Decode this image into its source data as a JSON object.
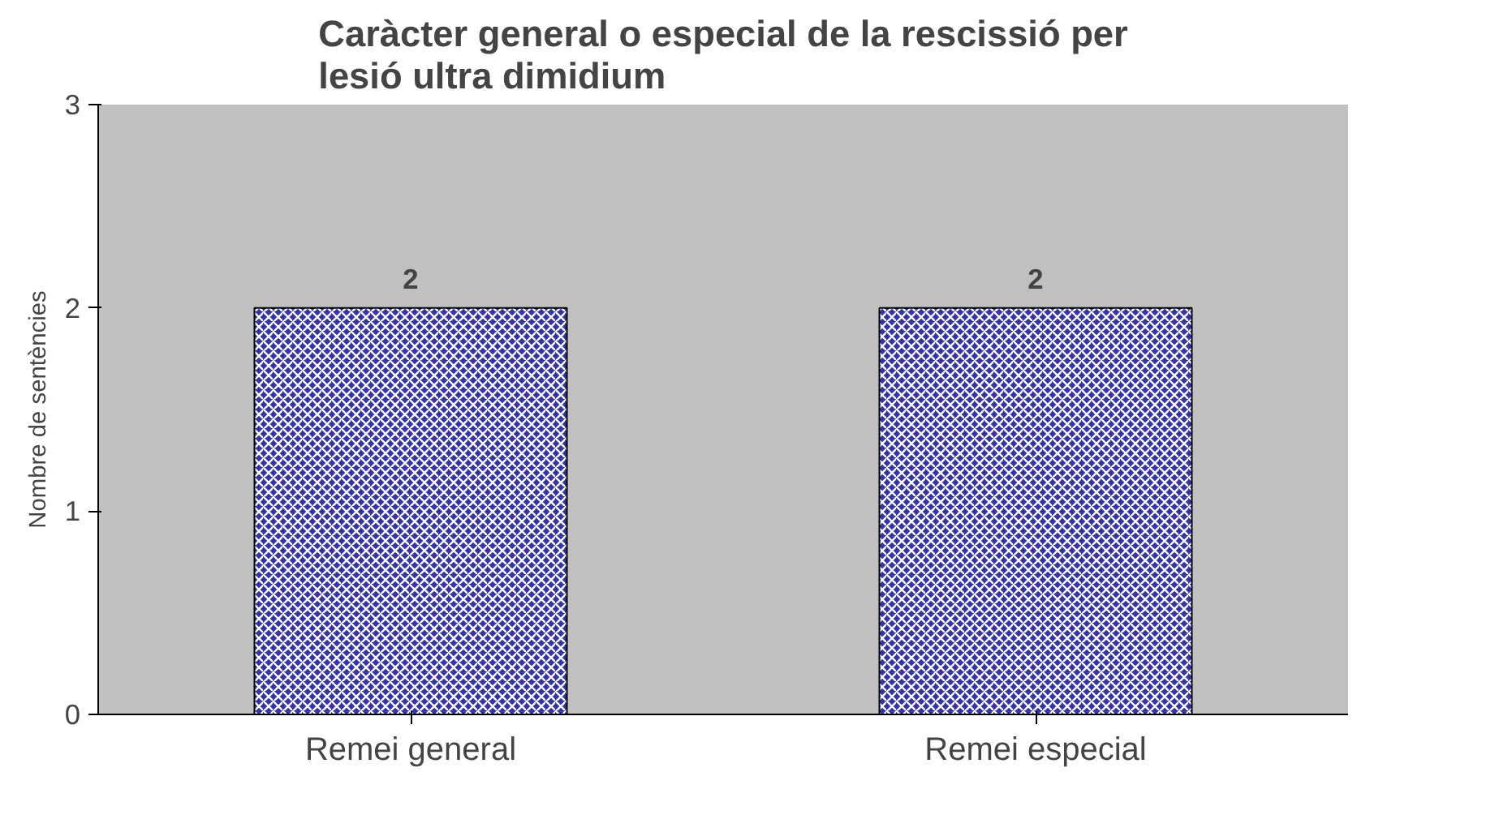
{
  "chart_data": {
    "type": "bar",
    "title": "Caràcter general o especial de la rescissió per lesió ultra dimidium",
    "categories": [
      "Remei general",
      "Remei especial"
    ],
    "values": [
      2,
      2
    ],
    "color": "#3333aa",
    "ylabel": "Nombre de sentències",
    "ylim": [
      0,
      3
    ],
    "yticks": [
      0,
      1,
      2,
      3
    ],
    "data_labels": true,
    "grid": false
  }
}
